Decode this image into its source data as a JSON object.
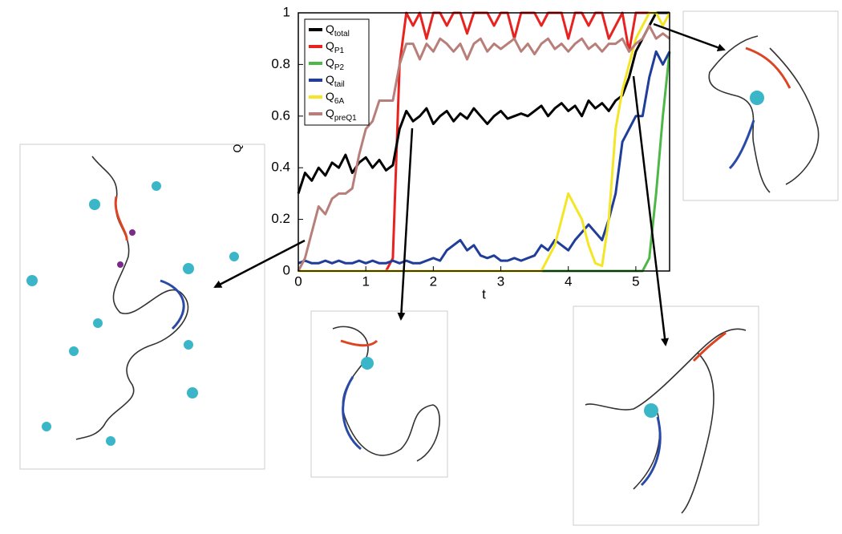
{
  "chart_data": {
    "type": "line",
    "xlabel": "t",
    "ylabel": "Q",
    "x": [
      0,
      0.1,
      0.2,
      0.3,
      0.4,
      0.5,
      0.6,
      0.7,
      0.8,
      0.9,
      1,
      1.1,
      1.2,
      1.3,
      1.4,
      1.5,
      1.6,
      1.7,
      1.8,
      1.9,
      2,
      2.1,
      2.2,
      2.3,
      2.4,
      2.5,
      2.6,
      2.7,
      2.8,
      2.9,
      3,
      3.1,
      3.2,
      3.3,
      3.4,
      3.5,
      3.6,
      3.7,
      3.8,
      3.9,
      4,
      4.1,
      4.2,
      4.3,
      4.4,
      4.5,
      4.6,
      4.7,
      4.8,
      4.9,
      5,
      5.1,
      5.2,
      5.3,
      5.4,
      5.5
    ],
    "xlim": [
      0,
      5.5
    ],
    "xticks": [
      0,
      1,
      2,
      3,
      4,
      5
    ],
    "ylim": [
      0,
      1
    ],
    "yticks": [
      0,
      0.2,
      0.4,
      0.6,
      0.8,
      1
    ],
    "legend": "upper left",
    "series": [
      {
        "name": "QP1",
        "color": "#e8231f",
        "values": [
          0,
          0,
          0,
          0,
          0,
          0,
          0,
          0,
          0,
          0,
          0,
          0,
          0,
          0,
          0.05,
          0.8,
          1,
          0.95,
          1,
          0.9,
          1,
          1,
          0.95,
          1,
          1,
          0.92,
          1,
          1,
          1,
          0.95,
          1,
          1,
          0.9,
          1,
          1,
          1,
          0.95,
          1,
          1,
          1,
          0.9,
          1,
          1,
          0.95,
          1,
          1,
          0.9,
          0.95,
          1,
          0.85,
          1,
          1,
          1,
          1,
          1,
          1
        ]
      },
      {
        "name": "Qtotal",
        "color": "#000000",
        "values": [
          0.3,
          0.38,
          0.35,
          0.4,
          0.37,
          0.42,
          0.4,
          0.45,
          0.38,
          0.42,
          0.44,
          0.4,
          0.43,
          0.39,
          0.41,
          0.55,
          0.62,
          0.58,
          0.6,
          0.63,
          0.57,
          0.6,
          0.62,
          0.58,
          0.61,
          0.59,
          0.63,
          0.6,
          0.57,
          0.6,
          0.62,
          0.59,
          0.6,
          0.61,
          0.6,
          0.62,
          0.64,
          0.6,
          0.63,
          0.65,
          0.62,
          0.64,
          0.6,
          0.66,
          0.63,
          0.65,
          0.62,
          0.66,
          0.68,
          0.75,
          0.85,
          0.9,
          0.95,
          1,
          1,
          1
        ]
      },
      {
        "name": "QP2",
        "color": "#4db848",
        "values": [
          0,
          0,
          0,
          0,
          0,
          0,
          0,
          0,
          0,
          0,
          0,
          0,
          0,
          0,
          0,
          0,
          0,
          0,
          0,
          0,
          0,
          0,
          0,
          0,
          0,
          0,
          0,
          0,
          0,
          0,
          0,
          0,
          0,
          0,
          0,
          0,
          0,
          0,
          0,
          0,
          0,
          0,
          0,
          0,
          0,
          0,
          0,
          0,
          0,
          0,
          0,
          0,
          0.05,
          0.3,
          0.6,
          0.85
        ]
      },
      {
        "name": "Qtail",
        "color": "#1f3d99",
        "values": [
          0.03,
          0.04,
          0.03,
          0.03,
          0.04,
          0.03,
          0.04,
          0.03,
          0.03,
          0.04,
          0.03,
          0.04,
          0.03,
          0.03,
          0.04,
          0.03,
          0.04,
          0.03,
          0.03,
          0.04,
          0.05,
          0.04,
          0.08,
          0.1,
          0.12,
          0.08,
          0.1,
          0.06,
          0.05,
          0.06,
          0.04,
          0.04,
          0.05,
          0.04,
          0.05,
          0.06,
          0.1,
          0.08,
          0.12,
          0.1,
          0.08,
          0.12,
          0.15,
          0.18,
          0.15,
          0.12,
          0.2,
          0.3,
          0.5,
          0.55,
          0.6,
          0.6,
          0.75,
          0.85,
          0.8,
          0.85
        ]
      },
      {
        "name": "Q6A",
        "color": "#f5e625",
        "values": [
          0,
          0,
          0,
          0,
          0,
          0,
          0,
          0,
          0,
          0,
          0,
          0,
          0,
          0,
          0,
          0,
          0,
          0,
          0,
          0,
          0,
          0,
          0,
          0,
          0,
          0,
          0,
          0,
          0,
          0,
          0,
          0,
          0,
          0,
          0,
          0,
          0,
          0.05,
          0.1,
          0.2,
          0.3,
          0.25,
          0.2,
          0.1,
          0.03,
          0.02,
          0.2,
          0.55,
          0.7,
          0.8,
          0.9,
          0.95,
          1,
          1,
          0.95,
          1
        ]
      },
      {
        "name": "QpreQ1",
        "color": "#b87f7a",
        "values": [
          0,
          0.05,
          0.15,
          0.25,
          0.22,
          0.28,
          0.3,
          0.3,
          0.32,
          0.45,
          0.55,
          0.58,
          0.66,
          0.66,
          0.66,
          0.8,
          0.88,
          0.88,
          0.82,
          0.88,
          0.85,
          0.9,
          0.88,
          0.85,
          0.88,
          0.82,
          0.88,
          0.9,
          0.85,
          0.88,
          0.86,
          0.88,
          0.9,
          0.85,
          0.88,
          0.84,
          0.88,
          0.9,
          0.86,
          0.88,
          0.85,
          0.88,
          0.9,
          0.86,
          0.88,
          0.85,
          0.88,
          0.88,
          0.9,
          0.85,
          0.88,
          0.9,
          0.95,
          0.9,
          0.92,
          0.9
        ]
      }
    ]
  }
}
